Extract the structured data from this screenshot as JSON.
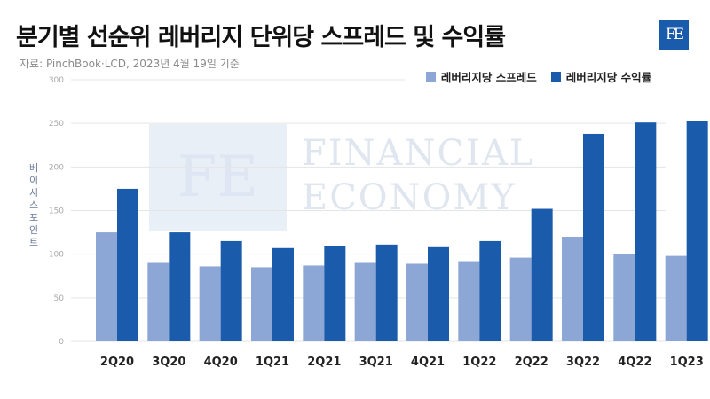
{
  "title": "분기별 선순위 레버리지 단위당 스프레드 및 수익률",
  "source": "자료: PinchBook·LCD, 2023년 4월 19일 기준",
  "logo": "FE",
  "watermark": {
    "mark": "FE",
    "line1": "FINANCIAL",
    "line2": "ECONOMY"
  },
  "colors": {
    "spread": "#8ca6d6",
    "yield": "#1a5cab",
    "grid": "#e5e5e5",
    "tick": "#aaaaaa",
    "category": "#222222"
  },
  "chart_data": {
    "type": "bar",
    "title": "분기별 선순위 레버리지 단위당 스프레드 및 수익률",
    "ylabel": "베이시스 포인트",
    "xlabel": "",
    "ylim": [
      0,
      300
    ],
    "yticks": [
      "0",
      "50",
      "100",
      "150",
      "200",
      "250",
      "300"
    ],
    "categories": [
      "2Q20",
      "3Q20",
      "4Q20",
      "1Q21",
      "2Q21",
      "3Q21",
      "4Q21",
      "1Q22",
      "2Q22",
      "3Q22",
      "4Q22",
      "1Q23"
    ],
    "series": [
      {
        "name": "레버리지당 스프레드",
        "values": [
          125,
          90,
          86,
          85,
          87,
          90,
          89,
          92,
          96,
          120,
          100,
          98
        ]
      },
      {
        "name": "레버리지당 수익률",
        "values": [
          175,
          125,
          115,
          107,
          109,
          111,
          108,
          115,
          152,
          238,
          251,
          253
        ]
      }
    ],
    "grid": true,
    "legend": "top-right"
  }
}
